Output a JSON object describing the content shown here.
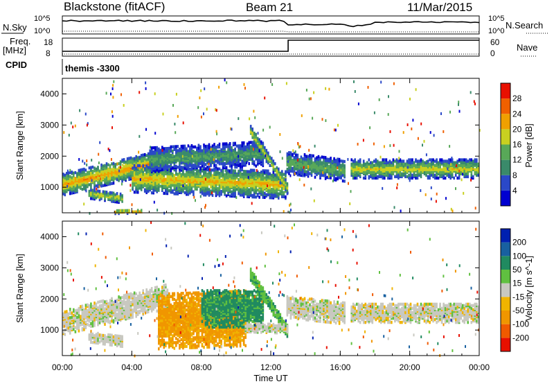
{
  "header": {
    "station": "Blackstone (fitACF)",
    "beam": "Beam 21",
    "date": "11/Mar/2015"
  },
  "top_panels": {
    "nsky_label": "N.Sky",
    "nsearch_label": "N.Search",
    "freq_label": "Freq.",
    "freq_unit": "[MHz]",
    "nave_label": "Nave",
    "cpid_label": "CPID",
    "cpid_value": "themis -3300",
    "noise_left_ticks": [
      "10^5",
      "10^0"
    ],
    "noise_right_ticks": [
      "10^5",
      "10^0"
    ],
    "freq_ticks": [
      "18",
      "8"
    ],
    "nave_ticks": [
      "60",
      "0"
    ]
  },
  "colors": {
    "power_scale": [
      "#0000d0",
      "#2a48c8",
      "#3a8a6a",
      "#58a858",
      "#c8d020",
      "#f0a000",
      "#f06000",
      "#e81000"
    ],
    "velocity_scale": [
      "#e81000",
      "#f05a00",
      "#f09600",
      "#f0b400",
      "#c8c8c0",
      "#60c040",
      "#208a60",
      "#1860a0",
      "#0020b0"
    ]
  },
  "chart_data": [
    {
      "type": "heatmap",
      "name": "power",
      "ylabel": "Slant Range [km]",
      "xlabel": "",
      "x_range_hours": [
        0,
        24
      ],
      "ylim": [
        180,
        4500
      ],
      "x_ticks": [
        "00:00",
        "04:00",
        "08:00",
        "12:00",
        "16:00",
        "20:00",
        "00:00"
      ],
      "y_ticks": [
        1000,
        2000,
        3000,
        4000
      ],
      "colorbar": {
        "label": "Power [dB]",
        "ticks": [
          "4",
          "8",
          "12",
          "16",
          "20",
          "24",
          "28"
        ],
        "range": [
          0,
          30
        ]
      },
      "bands": [
        {
          "from": 0,
          "to": 6,
          "center_start": 1100,
          "center_end": 1900,
          "width": 350,
          "level": 22
        },
        {
          "from": 1.5,
          "to": 3.5,
          "center_start": 800,
          "center_end": 650,
          "width": 150,
          "level": 18
        },
        {
          "from": 3,
          "to": 4.5,
          "center_start": 220,
          "center_end": 230,
          "width": 60,
          "level": 24
        },
        {
          "from": 4,
          "to": 12.8,
          "center_start": 1300,
          "center_end": 1100,
          "width": 450,
          "level": 20
        },
        {
          "from": 5,
          "to": 11.5,
          "center_start": 1900,
          "center_end": 2100,
          "width": 400,
          "level": 12
        },
        {
          "from": 10.8,
          "to": 12.9,
          "center_start": 2800,
          "center_end": 1000,
          "width": 200,
          "level": 18
        },
        {
          "from": 12.9,
          "to": 16.2,
          "center_start": 1800,
          "center_end": 1550,
          "width": 350,
          "level": 14
        },
        {
          "from": 16.6,
          "to": 24,
          "center_start": 1600,
          "center_end": 1600,
          "width": 300,
          "level": 18
        }
      ]
    },
    {
      "type": "heatmap",
      "name": "velocity",
      "ylabel": "Slant Range [km]",
      "xlabel": "Time UT",
      "x_range_hours": [
        0,
        24
      ],
      "ylim": [
        180,
        4500
      ],
      "x_ticks": [
        "00:00",
        "04:00",
        "08:00",
        "12:00",
        "16:00",
        "20:00",
        "00:00"
      ],
      "y_ticks": [
        1000,
        2000,
        3000,
        4000
      ],
      "colorbar": {
        "label": "Velocity [m s^-1]",
        "ticks": [
          "200",
          "100",
          "50",
          "15",
          "-15",
          "-50",
          "-100",
          "-200"
        ],
        "range": [
          -250,
          250
        ]
      },
      "bands": [
        {
          "from": 0,
          "to": 6,
          "center_start": 1250,
          "center_end": 2100,
          "width": 400,
          "level": 0
        },
        {
          "from": 1.5,
          "to": 3.5,
          "center_start": 800,
          "center_end": 650,
          "width": 180,
          "level": 0
        },
        {
          "from": 5.5,
          "to": 10.5,
          "center_start": 1300,
          "center_end": 1400,
          "width": 900,
          "level": -60
        },
        {
          "from": 8,
          "to": 11.5,
          "center_start": 1700,
          "center_end": 1700,
          "width": 600,
          "level": 60
        },
        {
          "from": 10.8,
          "to": 12.9,
          "center_start": 2800,
          "center_end": 1000,
          "width": 200,
          "level": 40
        },
        {
          "from": 10.5,
          "to": 12.9,
          "center_start": 1100,
          "center_end": 1050,
          "width": 150,
          "level": 0
        },
        {
          "from": 12.9,
          "to": 16.2,
          "center_start": 1750,
          "center_end": 1550,
          "width": 350,
          "level": 0
        },
        {
          "from": 16.6,
          "to": 24,
          "center_start": 1550,
          "center_end": 1550,
          "width": 300,
          "level": 0
        }
      ]
    }
  ]
}
